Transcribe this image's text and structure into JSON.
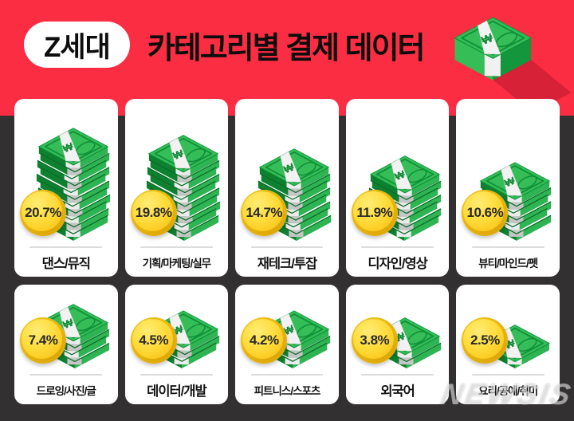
{
  "header": {
    "badge": "Z세대",
    "title": "카테고리별 결제 데이터"
  },
  "watermark": "NEWSIS",
  "colors": {
    "accent_red": "#FB2D43",
    "background_dark": "#323031",
    "shadow_red": "#D62136",
    "bill_green_light": "#35BD58",
    "bill_green_dark": "#0E8130",
    "coin_yellow": "#FFDD3E",
    "card_white": "#FFFFFF"
  },
  "cards": [
    {
      "label": "댄스/뮤직",
      "pct": "20.7%",
      "bills": 11,
      "row": 1
    },
    {
      "label": "기획/마케팅/실무",
      "pct": "19.8%",
      "bills": 10,
      "row": 1
    },
    {
      "label": "재테크/투잡",
      "pct": "14.7%",
      "bills": 8,
      "row": 1
    },
    {
      "label": "디자인/영상",
      "pct": "11.9%",
      "bills": 7,
      "row": 1
    },
    {
      "label": "뷰티/마인드/펫",
      "pct": "10.6%",
      "bills": 6,
      "row": 1
    },
    {
      "label": "드로잉/사진/글",
      "pct": "7.4%",
      "bills": 4,
      "row": 2
    },
    {
      "label": "데이터/개발",
      "pct": "4.5%",
      "bills": 3,
      "row": 2
    },
    {
      "label": "피트니스/스포츠",
      "pct": "4.2%",
      "bills": 3,
      "row": 2
    },
    {
      "label": "외국어",
      "pct": "3.8%",
      "bills": 2,
      "row": 2
    },
    {
      "label": "요리/공예/취미",
      "pct": "2.5%",
      "bills": 1,
      "row": 2
    }
  ],
  "chart_data": {
    "type": "bar",
    "title": "Z세대 카테고리별 결제 데이터",
    "categories": [
      "댄스/뮤직",
      "기획/마케팅/실무",
      "재테크/투잡",
      "디자인/영상",
      "뷰티/마인드/펫",
      "드로잉/사진/글",
      "데이터/개발",
      "피트니스/스포츠",
      "외국어",
      "요리/공예/취미"
    ],
    "values": [
      20.7,
      19.8,
      14.7,
      11.9,
      10.6,
      7.4,
      4.5,
      4.2,
      3.8,
      2.5
    ],
    "unit": "%",
    "legend": "none",
    "note": "percent share shown on coin badge of each category card"
  }
}
